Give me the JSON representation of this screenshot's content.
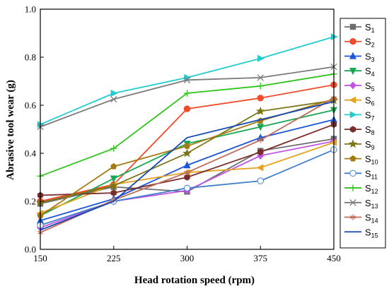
{
  "chart_data": {
    "type": "line",
    "xlabel": "Head rotation speed (rpm)",
    "ylabel": "Abrasive tool wear (g)",
    "x": [
      150,
      225,
      300,
      375,
      450
    ],
    "x_ticks": [
      "150",
      "225",
      "300",
      "375",
      "450"
    ],
    "y_ticks": [
      "0.0",
      "0.2",
      "0.4",
      "0.6",
      "0.8",
      "1.0"
    ],
    "xlim": [
      150,
      450
    ],
    "ylim": [
      0,
      1.0
    ],
    "grid": false,
    "legend_position": "right",
    "series": [
      {
        "name": "S",
        "sub": "1",
        "color": "#6d6d6d",
        "marker": "square",
        "values": [
          0.19,
          0.26,
          0.24,
          0.41,
          0.46
        ]
      },
      {
        "name": "S",
        "sub": "2",
        "color": "#f24a2c",
        "marker": "circle",
        "values": [
          0.2,
          0.27,
          0.585,
          0.63,
          0.685
        ]
      },
      {
        "name": "S",
        "sub": "3",
        "color": "#1c55d6",
        "marker": "triangle-up",
        "values": [
          0.12,
          0.21,
          0.35,
          0.465,
          0.54
        ]
      },
      {
        "name": "S",
        "sub": "4",
        "color": "#19a653",
        "marker": "triangle-down",
        "values": [
          0.14,
          0.295,
          0.44,
          0.51,
          0.58
        ]
      },
      {
        "name": "S",
        "sub": "5",
        "color": "#c253e6",
        "marker": "diamond",
        "values": [
          0.09,
          0.2,
          0.245,
          0.39,
          0.45
        ]
      },
      {
        "name": "S",
        "sub": "6",
        "color": "#e5a31f",
        "marker": "triangle-left",
        "values": [
          0.15,
          0.27,
          0.32,
          0.34,
          0.445
        ]
      },
      {
        "name": "S",
        "sub": "7",
        "color": "#22ccce",
        "marker": "triangle-right",
        "values": [
          0.52,
          0.65,
          0.715,
          0.795,
          0.885
        ]
      },
      {
        "name": "S",
        "sub": "8",
        "color": "#7a2e2b",
        "marker": "hexagon",
        "values": [
          0.225,
          0.235,
          0.3,
          0.405,
          0.52
        ]
      },
      {
        "name": "S",
        "sub": "9",
        "color": "#7c7416",
        "marker": "star",
        "values": [
          0.195,
          0.265,
          0.4,
          0.575,
          0.62
        ]
      },
      {
        "name": "S",
        "sub": "10",
        "color": "#a47a14",
        "marker": "pentagon",
        "values": [
          0.14,
          0.345,
          0.43,
          0.535,
          0.625
        ]
      },
      {
        "name": "S",
        "sub": "11",
        "color": "#3f7fcc",
        "marker": "circle-open",
        "values": [
          0.1,
          0.2,
          0.255,
          0.285,
          0.415
        ]
      },
      {
        "name": "S",
        "sub": "12",
        "color": "#2fc41c",
        "marker": "plus",
        "values": [
          0.305,
          0.42,
          0.65,
          0.68,
          0.73
        ]
      },
      {
        "name": "S",
        "sub": "13",
        "color": "#7a7a7a",
        "marker": "x",
        "values": [
          0.51,
          0.625,
          0.705,
          0.715,
          0.76
        ]
      },
      {
        "name": "S",
        "sub": "14",
        "color": "#c06b58",
        "marker": "asterisk",
        "values": [
          0.07,
          0.205,
          0.32,
          0.455,
          0.63
        ]
      },
      {
        "name": "S",
        "sub": "15",
        "color": "#1547b5",
        "marker": "none",
        "values": [
          0.08,
          0.2,
          0.465,
          0.54,
          0.615
        ]
      }
    ]
  }
}
